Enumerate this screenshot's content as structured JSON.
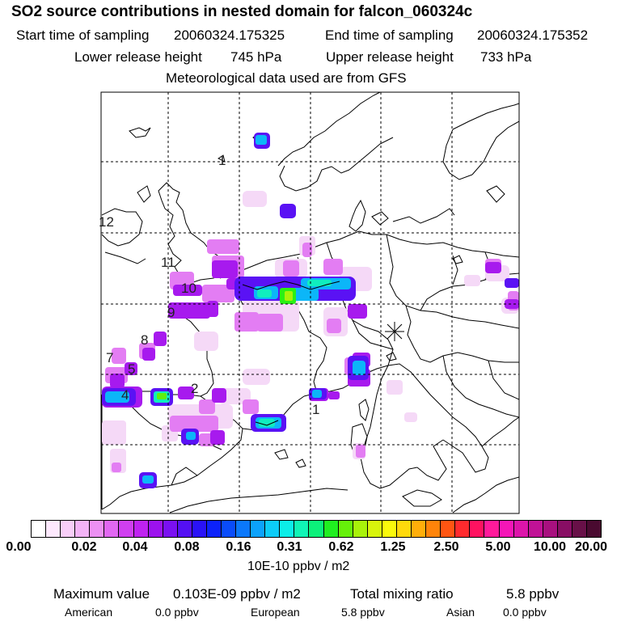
{
  "header": {
    "title": "SO2 source contributions in nested domain for falcon_060324c",
    "start_label": "Start time of sampling",
    "start_value": "20060324.175325",
    "end_label": "End time of sampling",
    "end_value": "20060324.175352",
    "lower_label": "Lower release height",
    "lower_value": "745 hPa",
    "upper_label": "Upper release height",
    "upper_value": "733 hPa",
    "met_text": "Meteorological data used are from GFS"
  },
  "map": {
    "flight_track_labels": [
      "1",
      "2",
      "4",
      "5",
      "7",
      "8",
      "9",
      "10",
      "11",
      "12",
      "1"
    ],
    "release_marker": "asterisk-star"
  },
  "colorbar": {
    "colors": [
      "#ffffff",
      "#fde8fd",
      "#f8cef8",
      "#f3b3f6",
      "#ec90f3",
      "#e167f2",
      "#d03ff0",
      "#bf22f0",
      "#9c12ee",
      "#7a10f1",
      "#5410f4",
      "#2a12f7",
      "#0c22fa",
      "#0a4cfa",
      "#0b78fb",
      "#0ca2fb",
      "#0cccf7",
      "#0ceee8",
      "#10f4b6",
      "#0cf07a",
      "#20ef20",
      "#66f00a",
      "#a8f20a",
      "#d8f40c",
      "#fafa0c",
      "#ffd90c",
      "#ffae0a",
      "#ff840a",
      "#ff5512",
      "#ff2a2e",
      "#ff1260",
      "#ff1a9b",
      "#f416b7",
      "#dc14aa",
      "#c01296",
      "#a8107f",
      "#880e64",
      "#681048",
      "#4a0a30"
    ],
    "ticks": [
      "0.00",
      "0.02",
      "0.04",
      "0.08",
      "0.16",
      "0.31",
      "0.62",
      "1.25",
      "2.50",
      "5.00",
      "10.00",
      "20.00"
    ],
    "units": "10E-10 ppbv / m2"
  },
  "footer": {
    "max_label": "Maximum value",
    "max_value": "0.103E-09 ppbv / m2",
    "total_label": "Total mixing ratio",
    "total_value": "5.8 ppbv",
    "sources": [
      {
        "name": "American",
        "value": "0.0 ppbv"
      },
      {
        "name": "European",
        "value": "5.8 ppbv"
      },
      {
        "name": "Asian",
        "value": "0.0 ppbv"
      }
    ]
  }
}
